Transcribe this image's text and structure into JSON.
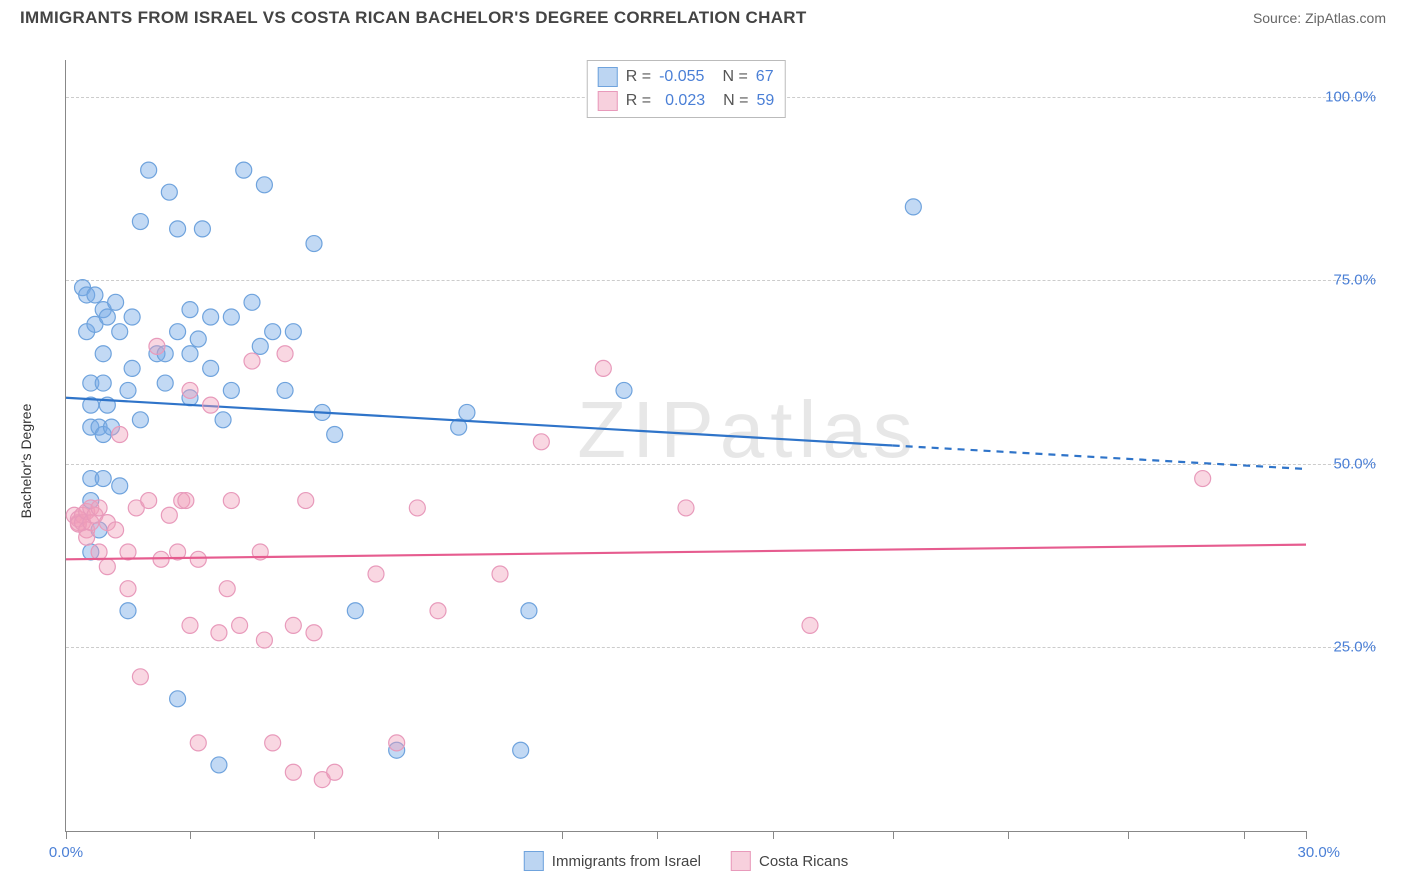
{
  "header": {
    "title": "IMMIGRANTS FROM ISRAEL VS COSTA RICAN BACHELOR'S DEGREE CORRELATION CHART",
    "source_prefix": "Source: ",
    "source_name": "ZipAtlas.com"
  },
  "chart": {
    "type": "scatter-with-regression",
    "watermark": "ZIPatlas",
    "ylabel": "Bachelor's Degree",
    "xlim": [
      0,
      30
    ],
    "ylim": [
      0,
      105
    ],
    "xticks": [
      0,
      3,
      6,
      9,
      12,
      14.3,
      17.1,
      20,
      22.8,
      25.7,
      28.5,
      30
    ],
    "xtick_labels_shown": {
      "0": "0.0%",
      "30": "30.0%"
    },
    "yticks": [
      25,
      50,
      75,
      100
    ],
    "ytick_labels": {
      "25": "25.0%",
      "50": "50.0%",
      "75": "75.0%",
      "100": "100.0%"
    },
    "grid_color": "#cccccc",
    "axis_color": "#888888",
    "background_color": "#ffffff",
    "series": [
      {
        "name": "Immigrants from Israel",
        "color_fill": "rgba(120,170,230,0.45)",
        "color_stroke": "#6fa3dd",
        "r_value": "-0.055",
        "n_value": "67",
        "legend_swatch_fill": "#bcd5f2",
        "legend_swatch_stroke": "#6fa3dd",
        "regression": {
          "x1": 0,
          "y1": 59,
          "x2_solid": 20,
          "y2_solid": 52.5,
          "x2_dash": 30,
          "y2_dash": 49.3,
          "stroke": "#2f74c9",
          "width": 2.2
        },
        "points": [
          [
            0.4,
            74
          ],
          [
            0.5,
            73
          ],
          [
            0.5,
            68
          ],
          [
            0.6,
            61
          ],
          [
            0.6,
            58
          ],
          [
            0.6,
            55
          ],
          [
            0.6,
            48
          ],
          [
            0.6,
            45
          ],
          [
            0.6,
            38
          ],
          [
            0.7,
            73
          ],
          [
            0.7,
            69
          ],
          [
            0.8,
            55
          ],
          [
            0.8,
            41
          ],
          [
            0.9,
            71
          ],
          [
            0.9,
            65
          ],
          [
            0.9,
            61
          ],
          [
            0.9,
            54
          ],
          [
            0.9,
            48
          ],
          [
            1.0,
            70
          ],
          [
            1.0,
            58
          ],
          [
            1.1,
            55
          ],
          [
            1.2,
            72
          ],
          [
            1.3,
            68
          ],
          [
            1.3,
            47
          ],
          [
            1.5,
            60
          ],
          [
            1.5,
            30
          ],
          [
            1.6,
            70
          ],
          [
            1.6,
            63
          ],
          [
            1.8,
            83
          ],
          [
            1.8,
            56
          ],
          [
            2.0,
            90
          ],
          [
            2.2,
            65
          ],
          [
            2.4,
            65
          ],
          [
            2.4,
            61
          ],
          [
            2.5,
            87
          ],
          [
            2.7,
            82
          ],
          [
            2.7,
            68
          ],
          [
            2.7,
            18
          ],
          [
            3.0,
            71
          ],
          [
            3.0,
            65
          ],
          [
            3.0,
            59
          ],
          [
            3.2,
            67
          ],
          [
            3.3,
            82
          ],
          [
            3.5,
            70
          ],
          [
            3.5,
            63
          ],
          [
            3.7,
            9
          ],
          [
            3.8,
            56
          ],
          [
            4.0,
            70
          ],
          [
            4.0,
            60
          ],
          [
            4.3,
            90
          ],
          [
            4.5,
            72
          ],
          [
            4.7,
            66
          ],
          [
            4.8,
            88
          ],
          [
            5.0,
            68
          ],
          [
            5.3,
            60
          ],
          [
            5.5,
            68
          ],
          [
            6.0,
            80
          ],
          [
            6.2,
            57
          ],
          [
            6.5,
            54
          ],
          [
            7.0,
            30
          ],
          [
            8.0,
            11
          ],
          [
            9.5,
            55
          ],
          [
            9.7,
            57
          ],
          [
            11.0,
            11
          ],
          [
            11.2,
            30
          ],
          [
            13.5,
            60
          ],
          [
            20.5,
            85
          ]
        ]
      },
      {
        "name": "Costa Ricans",
        "color_fill": "rgba(240,160,185,0.42)",
        "color_stroke": "#e89abb",
        "r_value": "0.023",
        "n_value": "59",
        "legend_swatch_fill": "#f7d0dd",
        "legend_swatch_stroke": "#e89abb",
        "regression": {
          "x1": 0,
          "y1": 37,
          "x2_solid": 30,
          "y2_solid": 39,
          "x2_dash": 30,
          "y2_dash": 39,
          "stroke": "#e65c8f",
          "width": 2.2
        },
        "points": [
          [
            0.2,
            43
          ],
          [
            0.3,
            42
          ],
          [
            0.3,
            42.5
          ],
          [
            0.3,
            41.8
          ],
          [
            0.4,
            43
          ],
          [
            0.4,
            42
          ],
          [
            0.5,
            43.5
          ],
          [
            0.5,
            41
          ],
          [
            0.5,
            40
          ],
          [
            0.6,
            44
          ],
          [
            0.6,
            42
          ],
          [
            0.7,
            43
          ],
          [
            0.8,
            44
          ],
          [
            0.8,
            38
          ],
          [
            1.0,
            42
          ],
          [
            1.0,
            36
          ],
          [
            1.2,
            41
          ],
          [
            1.3,
            54
          ],
          [
            1.5,
            38
          ],
          [
            1.5,
            33
          ],
          [
            1.7,
            44
          ],
          [
            1.8,
            21
          ],
          [
            2.0,
            45
          ],
          [
            2.2,
            66
          ],
          [
            2.3,
            37
          ],
          [
            2.5,
            43
          ],
          [
            2.7,
            38
          ],
          [
            2.8,
            45
          ],
          [
            2.9,
            45
          ],
          [
            3.0,
            60
          ],
          [
            3.0,
            28
          ],
          [
            3.2,
            37
          ],
          [
            3.2,
            12
          ],
          [
            3.5,
            58
          ],
          [
            3.7,
            27
          ],
          [
            3.9,
            33
          ],
          [
            4.0,
            45
          ],
          [
            4.2,
            28
          ],
          [
            4.5,
            64
          ],
          [
            4.7,
            38
          ],
          [
            4.8,
            26
          ],
          [
            5.0,
            12
          ],
          [
            5.3,
            65
          ],
          [
            5.5,
            28
          ],
          [
            5.5,
            8
          ],
          [
            5.8,
            45
          ],
          [
            6.0,
            27
          ],
          [
            6.2,
            7
          ],
          [
            6.5,
            8
          ],
          [
            7.5,
            35
          ],
          [
            8.0,
            12
          ],
          [
            8.5,
            44
          ],
          [
            9.0,
            30
          ],
          [
            10.5,
            35
          ],
          [
            11.5,
            53
          ],
          [
            13.0,
            63
          ],
          [
            15.0,
            44
          ],
          [
            18.0,
            28
          ],
          [
            27.5,
            48
          ]
        ]
      }
    ],
    "bottom_legend": [
      {
        "swatch_fill": "#bcd5f2",
        "swatch_stroke": "#6fa3dd",
        "label": "Immigrants from Israel"
      },
      {
        "swatch_fill": "#f7d0dd",
        "swatch_stroke": "#e89abb",
        "label": "Costa Ricans"
      }
    ],
    "label_fontsize": 15,
    "label_color": "#4a7fd6",
    "point_radius": 8
  }
}
